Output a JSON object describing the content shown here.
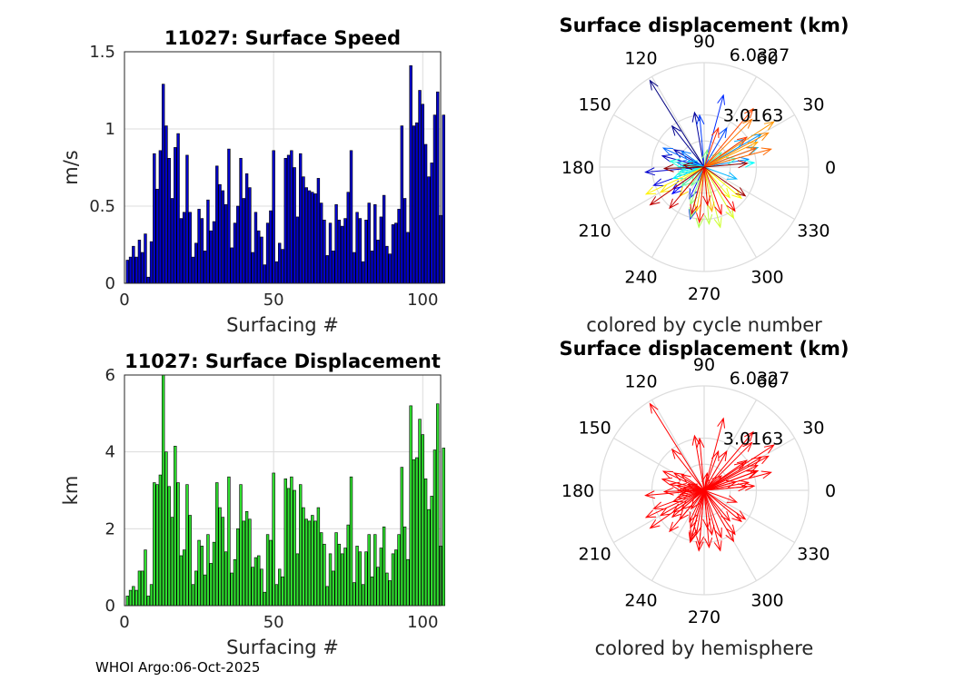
{
  "footer": "WHOI Argo:06-Oct-2025",
  "colors": {
    "speed_bar": "#0000cc",
    "disp_bar": "#2fe02f",
    "hemisphere_arrow": "#ff0000",
    "grid": "#dcdcdc"
  },
  "chart_data": [
    {
      "type": "bar",
      "title": "11027: Surface Speed",
      "xlabel": "Surfacing #",
      "ylabel": "m/s",
      "xlim": [
        0,
        106
      ],
      "ylim": [
        0,
        1.5
      ],
      "xticks": [
        "0",
        "50",
        "100"
      ],
      "yticks": [
        "0",
        "0.5",
        "1",
        "1.5"
      ],
      "grid": true,
      "values": [
        0.15,
        0.17,
        0.24,
        0.17,
        0.28,
        0.2,
        0.32,
        0.04,
        0.27,
        0.84,
        0.61,
        0.86,
        1.29,
        1.02,
        0.81,
        0.55,
        0.88,
        0.97,
        0.42,
        0.46,
        0.83,
        0.46,
        0.17,
        0.26,
        0.48,
        0.42,
        0.21,
        0.54,
        0.34,
        0.4,
        0.76,
        0.64,
        0.6,
        0.51,
        0.87,
        0.23,
        0.39,
        0.5,
        0.81,
        0.55,
        0.71,
        0.62,
        0.2,
        0.46,
        0.34,
        0.3,
        0.12,
        0.39,
        0.47,
        0.86,
        0.14,
        0.26,
        0.22,
        0.81,
        0.83,
        0.86,
        0.75,
        0.43,
        0.84,
        0.69,
        0.62,
        0.6,
        0.59,
        0.58,
        0.68,
        0.52,
        0.41,
        0.18,
        0.39,
        0.21,
        0.51,
        0.41,
        0.37,
        0.42,
        0.59,
        0.86,
        0.2,
        0.46,
        0.42,
        0.14,
        0.41,
        0.52,
        0.21,
        0.51,
        0.28,
        0.43,
        0.57,
        0.24,
        0.19,
        0.38,
        0.39,
        0.48,
        1.02,
        0.55,
        0.33,
        1.41,
        1.02,
        1.04,
        1.25,
        1.16,
        0.9,
        0.69,
        0.78,
        1.09,
        1.24,
        0.44,
        1.09
      ],
      "series_name": "speed"
    },
    {
      "type": "bar",
      "title": "11027: Surface Displacement",
      "xlabel": "Surfacing #",
      "ylabel": "km",
      "xlim": [
        0,
        106
      ],
      "ylim": [
        0,
        6
      ],
      "xticks": [
        "0",
        "50",
        "100"
      ],
      "yticks": [
        "0",
        "2",
        "4",
        "6"
      ],
      "grid": true,
      "values": [
        0.25,
        0.4,
        0.5,
        0.4,
        0.9,
        0.9,
        1.45,
        0.25,
        0.55,
        3.2,
        3.15,
        3.4,
        6.0,
        4.0,
        3.1,
        2.3,
        4.15,
        3.2,
        1.3,
        1.45,
        3.15,
        2.35,
        0.55,
        0.9,
        1.7,
        1.55,
        0.8,
        1.85,
        1.1,
        1.65,
        3.2,
        2.55,
        2.3,
        1.4,
        3.35,
        0.85,
        1.2,
        2.0,
        3.15,
        2.2,
        2.45,
        2.25,
        1.0,
        1.25,
        1.3,
        0.95,
        0.35,
        1.85,
        1.7,
        3.45,
        0.55,
        0.95,
        0.75,
        3.3,
        3.05,
        3.35,
        3.0,
        1.35,
        3.15,
        2.55,
        2.25,
        2.2,
        2.35,
        2.2,
        2.55,
        1.9,
        1.6,
        0.5,
        1.35,
        0.9,
        1.9,
        1.6,
        1.35,
        1.5,
        2.1,
        3.35,
        0.6,
        1.55,
        1.4,
        0.55,
        1.4,
        1.85,
        0.75,
        1.85,
        1.0,
        1.5,
        2.05,
        0.85,
        0.65,
        1.35,
        1.45,
        1.85,
        3.6,
        2.05,
        1.2,
        5.2,
        3.8,
        3.85,
        4.85,
        4.45,
        3.3,
        2.5,
        2.85,
        4.05,
        5.25,
        1.55,
        4.1
      ],
      "series_name": "displacement"
    },
    {
      "type": "polar-arrows",
      "title": "Surface displacement (km)",
      "caption": "colored by cycle number",
      "rlim": [
        0,
        6.0327
      ],
      "rtick_labels": [
        "3.0163",
        "6.0327"
      ],
      "angle_labels": [
        "0",
        "30",
        "60",
        "90",
        "120",
        "150",
        "180",
        "210",
        "240",
        "270",
        "300",
        "330"
      ],
      "colormap": "jet",
      "arrows": [
        {
          "angle": 122,
          "r": 5.9
        },
        {
          "angle": 128,
          "r": 3.0
        },
        {
          "angle": 100,
          "r": 3.2
        },
        {
          "angle": 150,
          "r": 2.0
        },
        {
          "angle": 165,
          "r": 2.5
        },
        {
          "angle": 185,
          "r": 3.4
        },
        {
          "angle": 200,
          "r": 3.1
        },
        {
          "angle": 215,
          "r": 2.2
        },
        {
          "angle": 220,
          "r": 2.4
        },
        {
          "angle": 245,
          "r": 2.0
        },
        {
          "angle": 255,
          "r": 3.1
        },
        {
          "angle": 75,
          "r": 4.3
        },
        {
          "angle": 95,
          "r": 3.0
        },
        {
          "angle": 60,
          "r": 2.6
        },
        {
          "angle": 170,
          "r": 1.6
        },
        {
          "angle": 155,
          "r": 2.6
        },
        {
          "angle": 145,
          "r": 1.6
        },
        {
          "angle": 10,
          "r": 2.6
        },
        {
          "angle": 30,
          "r": 3.8
        },
        {
          "angle": 35,
          "r": 2.8
        },
        {
          "angle": 340,
          "r": 2.0
        },
        {
          "angle": 20,
          "r": 3.3
        },
        {
          "angle": 160,
          "r": 1.0
        },
        {
          "angle": 190,
          "r": 1.4
        },
        {
          "angle": 200,
          "r": 1.9
        },
        {
          "angle": 5,
          "r": 2.9
        },
        {
          "angle": 180,
          "r": 1.5
        },
        {
          "angle": 170,
          "r": 2.0
        },
        {
          "angle": 195,
          "r": 1.6
        },
        {
          "angle": 15,
          "r": 1.9
        },
        {
          "angle": 40,
          "r": 1.3
        },
        {
          "angle": 220,
          "r": 1.7
        },
        {
          "angle": 235,
          "r": 1.3
        },
        {
          "angle": 80,
          "r": 1.0
        },
        {
          "angle": 250,
          "r": 2.3
        },
        {
          "angle": 255,
          "r": 3.0
        },
        {
          "angle": 265,
          "r": 3.5
        },
        {
          "angle": 275,
          "r": 3.3
        },
        {
          "angle": 285,
          "r": 3.6
        },
        {
          "angle": 300,
          "r": 3.4
        },
        {
          "angle": 310,
          "r": 2.3
        },
        {
          "angle": 320,
          "r": 2.8
        },
        {
          "angle": 205,
          "r": 3.7
        },
        {
          "angle": 210,
          "r": 2.9
        },
        {
          "angle": 230,
          "r": 2.2
        },
        {
          "angle": 260,
          "r": 2.6
        },
        {
          "angle": 280,
          "r": 2.6
        },
        {
          "angle": 25,
          "r": 3.4
        },
        {
          "angle": 33,
          "r": 4.8
        },
        {
          "angle": 28,
          "r": 4.2
        },
        {
          "angle": 45,
          "r": 3.9
        },
        {
          "angle": 15,
          "r": 4.0
        },
        {
          "angle": 20,
          "r": 3.2
        },
        {
          "angle": 50,
          "r": 4.4
        },
        {
          "angle": 35,
          "r": 3.0
        },
        {
          "angle": 70,
          "r": 2.4
        },
        {
          "angle": 265,
          "r": 3.2
        },
        {
          "angle": 290,
          "r": 2.9
        },
        {
          "angle": 305,
          "r": 3.1
        },
        {
          "angle": 275,
          "r": 2.2
        },
        {
          "angle": 255,
          "r": 2.8
        },
        {
          "angle": 230,
          "r": 3.1
        },
        {
          "angle": 215,
          "r": 3.8
        },
        {
          "angle": 5,
          "r": 2.5
        },
        {
          "angle": 325,
          "r": 2.9
        },
        {
          "angle": 182,
          "r": 2.3
        },
        {
          "angle": 175,
          "r": 1.2
        }
      ]
    },
    {
      "type": "polar-arrows",
      "title": "Surface displacement (km)",
      "caption": "colored by hemisphere",
      "rlim": [
        0,
        6.0327
      ],
      "rtick_labels": [
        "3.0163",
        "6.0327"
      ],
      "angle_labels": [
        "0",
        "30",
        "60",
        "90",
        "120",
        "150",
        "180",
        "210",
        "240",
        "270",
        "300",
        "330"
      ],
      "arrow_color": "#ff0000",
      "arrows": [
        {
          "angle": 122,
          "r": 5.9
        },
        {
          "angle": 128,
          "r": 3.0
        },
        {
          "angle": 100,
          "r": 3.2
        },
        {
          "angle": 150,
          "r": 2.0
        },
        {
          "angle": 165,
          "r": 2.5
        },
        {
          "angle": 185,
          "r": 3.4
        },
        {
          "angle": 200,
          "r": 3.1
        },
        {
          "angle": 215,
          "r": 2.2
        },
        {
          "angle": 220,
          "r": 2.4
        },
        {
          "angle": 245,
          "r": 2.0
        },
        {
          "angle": 255,
          "r": 3.1
        },
        {
          "angle": 75,
          "r": 4.3
        },
        {
          "angle": 95,
          "r": 3.0
        },
        {
          "angle": 60,
          "r": 2.6
        },
        {
          "angle": 170,
          "r": 1.6
        },
        {
          "angle": 155,
          "r": 2.6
        },
        {
          "angle": 145,
          "r": 1.6
        },
        {
          "angle": 10,
          "r": 2.6
        },
        {
          "angle": 30,
          "r": 3.8
        },
        {
          "angle": 35,
          "r": 2.8
        },
        {
          "angle": 340,
          "r": 2.0
        },
        {
          "angle": 20,
          "r": 3.3
        },
        {
          "angle": 160,
          "r": 1.0
        },
        {
          "angle": 190,
          "r": 1.4
        },
        {
          "angle": 200,
          "r": 1.9
        },
        {
          "angle": 5,
          "r": 2.9
        },
        {
          "angle": 180,
          "r": 1.5
        },
        {
          "angle": 170,
          "r": 2.0
        },
        {
          "angle": 195,
          "r": 1.6
        },
        {
          "angle": 15,
          "r": 1.9
        },
        {
          "angle": 40,
          "r": 1.3
        },
        {
          "angle": 220,
          "r": 1.7
        },
        {
          "angle": 235,
          "r": 1.3
        },
        {
          "angle": 80,
          "r": 1.0
        },
        {
          "angle": 250,
          "r": 2.3
        },
        {
          "angle": 255,
          "r": 3.0
        },
        {
          "angle": 265,
          "r": 3.5
        },
        {
          "angle": 275,
          "r": 3.3
        },
        {
          "angle": 285,
          "r": 3.6
        },
        {
          "angle": 300,
          "r": 3.4
        },
        {
          "angle": 310,
          "r": 2.3
        },
        {
          "angle": 320,
          "r": 2.8
        },
        {
          "angle": 205,
          "r": 3.7
        },
        {
          "angle": 210,
          "r": 2.9
        },
        {
          "angle": 230,
          "r": 2.2
        },
        {
          "angle": 260,
          "r": 2.6
        },
        {
          "angle": 280,
          "r": 2.6
        },
        {
          "angle": 25,
          "r": 3.4
        },
        {
          "angle": 33,
          "r": 4.8
        },
        {
          "angle": 28,
          "r": 4.2
        },
        {
          "angle": 45,
          "r": 3.9
        },
        {
          "angle": 15,
          "r": 4.0
        },
        {
          "angle": 20,
          "r": 3.2
        },
        {
          "angle": 50,
          "r": 4.4
        },
        {
          "angle": 35,
          "r": 3.0
        },
        {
          "angle": 70,
          "r": 2.4
        },
        {
          "angle": 265,
          "r": 3.2
        },
        {
          "angle": 290,
          "r": 2.9
        },
        {
          "angle": 305,
          "r": 3.1
        },
        {
          "angle": 275,
          "r": 2.2
        },
        {
          "angle": 255,
          "r": 2.8
        },
        {
          "angle": 230,
          "r": 3.1
        },
        {
          "angle": 215,
          "r": 3.8
        },
        {
          "angle": 5,
          "r": 2.5
        },
        {
          "angle": 325,
          "r": 2.9
        },
        {
          "angle": 182,
          "r": 2.3
        },
        {
          "angle": 175,
          "r": 1.2
        }
      ]
    }
  ]
}
